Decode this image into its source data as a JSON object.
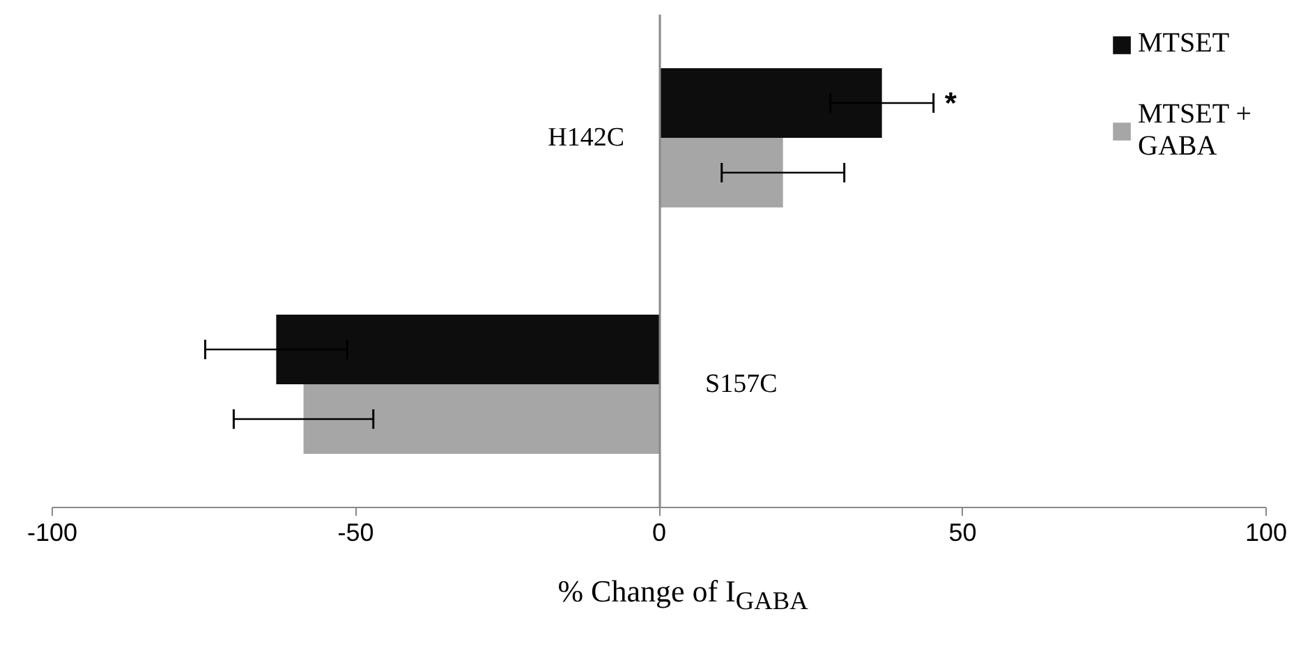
{
  "chart_data": {
    "type": "bar",
    "orientation": "horizontal",
    "xlabel": "% Change of I$_{GABA}$",
    "categories": [
      "H142C",
      "S157C"
    ],
    "series": [
      {
        "name": "MTSET",
        "color": "#0d0d0d",
        "values": [
          36.7,
          -63.1
        ],
        "errors": [
          8.5,
          11.7
        ]
      },
      {
        "name": "MTSET + GABA",
        "color": "#a6a6a6",
        "values": [
          20.4,
          -58.6
        ],
        "errors": [
          10.1,
          11.5
        ]
      }
    ],
    "xlim": [
      -100,
      100
    ],
    "xticks": [
      -100,
      -50,
      0,
      50,
      100
    ],
    "legend": "top right",
    "annotations": [
      "*"
    ]
  }
}
